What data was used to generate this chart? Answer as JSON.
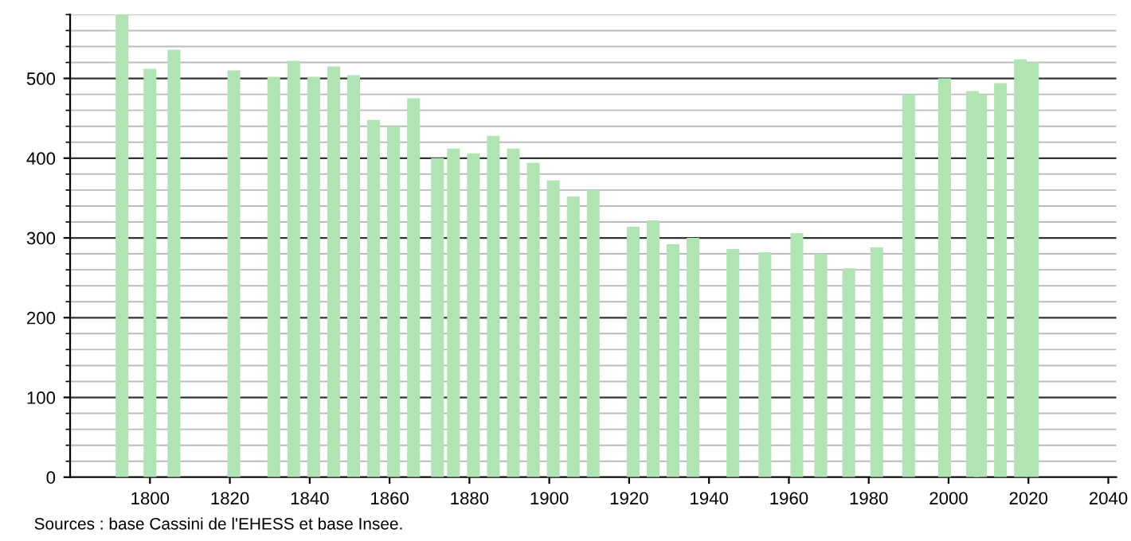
{
  "chart_data": {
    "type": "bar",
    "x": [
      1793,
      1800,
      1806,
      1821,
      1831,
      1836,
      1841,
      1846,
      1851,
      1856,
      1861,
      1866,
      1872,
      1876,
      1881,
      1886,
      1891,
      1896,
      1901,
      1906,
      1911,
      1921,
      1926,
      1931,
      1936,
      1946,
      1954,
      1962,
      1968,
      1975,
      1982,
      1990,
      1999,
      2006,
      2008,
      2013,
      2018,
      2021
    ],
    "values": [
      580,
      512,
      536,
      510,
      502,
      522,
      502,
      515,
      504,
      448,
      440,
      475,
      400,
      412,
      406,
      428,
      412,
      394,
      372,
      352,
      360,
      314,
      322,
      292,
      300,
      286,
      282,
      306,
      280,
      262,
      288,
      480,
      500,
      484,
      480,
      494,
      524,
      520
    ],
    "color": "#b0e4b2",
    "xlim": [
      1780,
      2042
    ],
    "xticks": [
      1800,
      1820,
      1840,
      1860,
      1880,
      1900,
      1920,
      1940,
      1960,
      1980,
      2000,
      2020,
      2040
    ],
    "ylim": [
      0,
      580
    ],
    "yticks": [
      0,
      100,
      200,
      300,
      400,
      500
    ],
    "grid": "y",
    "annotations": [
      "Sources : base Cassini de l'EHESS et base Insee."
    ]
  }
}
